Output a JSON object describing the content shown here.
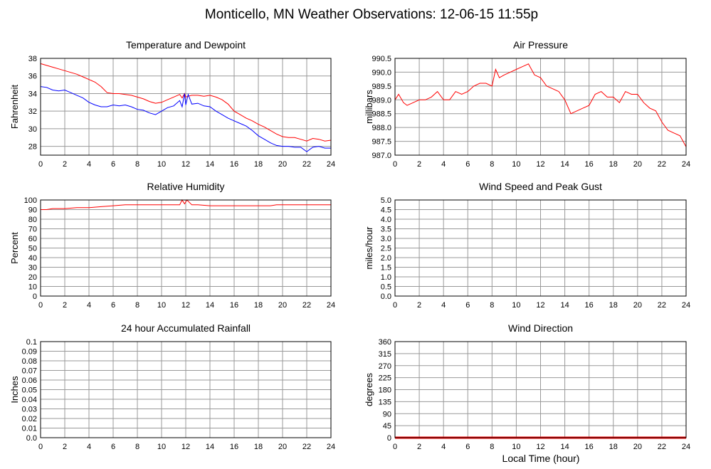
{
  "page": {
    "title": "Monticello, MN Weather Observations: 12-06-15 11:55p",
    "x_axis_label": "Local Time (hour)"
  },
  "chart_data": [
    {
      "id": "temp",
      "type": "line",
      "title": "Temperature and Dewpoint",
      "ylabel": "Fahrenheit",
      "xlim": [
        0,
        24
      ],
      "ylim": [
        27,
        38
      ],
      "yticks": [
        "28",
        "30",
        "32",
        "34",
        "36",
        "38"
      ],
      "ytick_values": [
        28,
        30,
        32,
        34,
        36,
        38
      ],
      "xticks": [
        "0",
        "2",
        "4",
        "6",
        "8",
        "10",
        "12",
        "14",
        "16",
        "18",
        "20",
        "22",
        "24"
      ],
      "grid": true,
      "series": [
        {
          "color": "#ff0000",
          "x": [
            0,
            0.5,
            1,
            1.5,
            2,
            2.5,
            3,
            3.5,
            4,
            4.5,
            5,
            5.5,
            6,
            6.5,
            7,
            7.5,
            8,
            8.5,
            9,
            9.5,
            10,
            10.5,
            11,
            11.5,
            11.7,
            11.9,
            12,
            12.2,
            12.5,
            13,
            13.5,
            14,
            14.5,
            15,
            15.5,
            16,
            16.5,
            17,
            17.5,
            18,
            18.5,
            19,
            19.5,
            20,
            20.5,
            21,
            21.5,
            22,
            22.5,
            23,
            23.5,
            24
          ],
          "y": [
            37.4,
            37.2,
            37.0,
            36.8,
            36.6,
            36.4,
            36.2,
            35.9,
            35.6,
            35.3,
            34.8,
            34.1,
            34.0,
            34.0,
            33.9,
            33.8,
            33.6,
            33.4,
            33.1,
            32.9,
            33.0,
            33.3,
            33.6,
            33.9,
            33.5,
            34.0,
            33.6,
            33.7,
            33.8,
            33.8,
            33.7,
            33.8,
            33.6,
            33.3,
            32.8,
            32.0,
            31.6,
            31.2,
            30.9,
            30.5,
            30.2,
            29.8,
            29.4,
            29.1,
            29.0,
            29.0,
            28.8,
            28.6,
            28.9,
            28.8,
            28.6,
            28.7
          ]
        },
        {
          "color": "#0000ff",
          "x": [
            0,
            0.5,
            1,
            1.5,
            2,
            2.5,
            3,
            3.5,
            4,
            4.5,
            5,
            5.5,
            6,
            6.5,
            7,
            7.5,
            8,
            8.5,
            9,
            9.5,
            10,
            10.5,
            11,
            11.5,
            11.7,
            11.9,
            12,
            12.2,
            12.5,
            13,
            13.5,
            14,
            14.5,
            15,
            15.5,
            16,
            16.5,
            17,
            17.5,
            18,
            18.5,
            19,
            19.5,
            20,
            20.5,
            21,
            21.5,
            22,
            22.5,
            23,
            23.5,
            24
          ],
          "y": [
            34.8,
            34.7,
            34.4,
            34.3,
            34.4,
            34.1,
            33.8,
            33.5,
            33.0,
            32.7,
            32.5,
            32.5,
            32.7,
            32.6,
            32.7,
            32.5,
            32.2,
            32.1,
            31.8,
            31.6,
            32.0,
            32.4,
            32.6,
            33.2,
            32.5,
            34.0,
            32.7,
            33.9,
            32.8,
            32.9,
            32.6,
            32.5,
            32.0,
            31.6,
            31.2,
            30.9,
            30.6,
            30.3,
            29.8,
            29.2,
            28.8,
            28.4,
            28.1,
            28.0,
            28.0,
            27.9,
            27.9,
            27.4,
            27.9,
            28.0,
            27.8,
            27.8
          ]
        }
      ]
    },
    {
      "id": "pressure",
      "type": "line",
      "title": "Air Pressure",
      "ylabel": "millibars",
      "xlim": [
        0,
        24
      ],
      "ylim": [
        987.0,
        990.5
      ],
      "yticks": [
        "987.0",
        "987.5",
        "988.0",
        "988.5",
        "989.0",
        "989.5",
        "990.0",
        "990.5"
      ],
      "ytick_values": [
        987.0,
        987.5,
        988.0,
        988.5,
        989.0,
        989.5,
        990.0,
        990.5
      ],
      "xticks": [
        "0",
        "2",
        "4",
        "6",
        "8",
        "10",
        "12",
        "14",
        "16",
        "18",
        "20",
        "22",
        "24"
      ],
      "grid": true,
      "series": [
        {
          "color": "#ff0000",
          "x": [
            0,
            0.3,
            0.7,
            1,
            1.5,
            2,
            2.5,
            3,
            3.5,
            4,
            4.5,
            5,
            5.5,
            6,
            6.5,
            7,
            7.5,
            8,
            8.3,
            8.6,
            9,
            9.5,
            10,
            10.5,
            11,
            11.5,
            12,
            12.5,
            13,
            13.5,
            14,
            14.5,
            15,
            15.5,
            16,
            16.5,
            17,
            17.5,
            18,
            18.5,
            19,
            19.5,
            20,
            20.5,
            21,
            21.5,
            22,
            22.5,
            23,
            23.5,
            24
          ],
          "y": [
            989.0,
            989.2,
            988.9,
            988.8,
            988.9,
            989.0,
            989.0,
            989.1,
            989.3,
            989.0,
            989.0,
            989.3,
            989.2,
            989.3,
            989.5,
            989.6,
            989.6,
            989.5,
            990.1,
            989.8,
            989.9,
            990.0,
            990.1,
            990.2,
            990.3,
            989.9,
            989.8,
            989.5,
            989.4,
            989.3,
            989.0,
            988.5,
            988.6,
            988.7,
            988.8,
            989.2,
            989.3,
            989.1,
            989.1,
            988.9,
            989.3,
            989.2,
            989.2,
            988.9,
            988.7,
            988.6,
            988.2,
            987.9,
            987.8,
            987.7,
            987.3
          ]
        }
      ]
    },
    {
      "id": "humidity",
      "type": "line",
      "title": "Relative Humidity",
      "ylabel": "Percent",
      "xlim": [
        0,
        24
      ],
      "ylim": [
        0,
        100
      ],
      "yticks": [
        "0",
        "10",
        "20",
        "30",
        "40",
        "50",
        "60",
        "70",
        "80",
        "90",
        "100"
      ],
      "ytick_values": [
        0,
        10,
        20,
        30,
        40,
        50,
        60,
        70,
        80,
        90,
        100
      ],
      "xticks": [
        "0",
        "2",
        "4",
        "6",
        "8",
        "10",
        "12",
        "14",
        "16",
        "18",
        "20",
        "22",
        "24"
      ],
      "grid": true,
      "series": [
        {
          "color": "#ff0000",
          "x": [
            0,
            0.5,
            1,
            2,
            3,
            4,
            5,
            6,
            7,
            8,
            9,
            10,
            11,
            11.5,
            11.7,
            11.9,
            12.1,
            12.5,
            13,
            14,
            15,
            16,
            17,
            18,
            19,
            19.5,
            20,
            21,
            22,
            23,
            24
          ],
          "y": [
            90,
            90,
            91,
            91,
            92,
            92,
            93,
            94,
            95,
            95,
            95,
            95,
            95,
            95,
            100,
            96,
            100,
            95,
            95,
            94,
            94,
            94,
            94,
            94,
            94,
            95,
            95,
            95,
            95,
            95,
            95
          ]
        }
      ]
    },
    {
      "id": "wind_speed",
      "type": "line",
      "title": "Wind Speed and Peak Gust",
      "ylabel": "miles/hour",
      "xlim": [
        0,
        24
      ],
      "ylim": [
        0,
        5
      ],
      "yticks": [
        "0.0",
        "0.5",
        "1.0",
        "1.5",
        "2.0",
        "2.5",
        "3.0",
        "3.5",
        "4.0",
        "4.5",
        "5.0"
      ],
      "ytick_values": [
        0,
        0.5,
        1.0,
        1.5,
        2.0,
        2.5,
        3.0,
        3.5,
        4.0,
        4.5,
        5.0
      ],
      "xticks": [
        "0",
        "2",
        "4",
        "6",
        "8",
        "10",
        "12",
        "14",
        "16",
        "18",
        "20",
        "22",
        "24"
      ],
      "grid": true,
      "series": [
        {
          "color": "#ff0000",
          "x": [
            0,
            24
          ],
          "y": [
            0,
            0
          ]
        },
        {
          "color": "#0000ff",
          "x": [
            0,
            24
          ],
          "y": [
            0,
            0
          ]
        }
      ]
    },
    {
      "id": "rain",
      "type": "line",
      "title": "24 hour Accumulated Rainfall",
      "ylabel": "Inches",
      "xlim": [
        0,
        24
      ],
      "ylim": [
        0,
        0.1
      ],
      "yticks": [
        "0.0",
        "0.01",
        "0.02",
        "0.03",
        "0.04",
        "0.05",
        "0.06",
        "0.07",
        "0.08",
        "0.09",
        "0.1"
      ],
      "ytick_values": [
        0,
        0.01,
        0.02,
        0.03,
        0.04,
        0.05,
        0.06,
        0.07,
        0.08,
        0.09,
        0.1
      ],
      "xticks": [
        "0",
        "2",
        "4",
        "6",
        "8",
        "10",
        "12",
        "14",
        "16",
        "18",
        "20",
        "22",
        "24"
      ],
      "grid": true,
      "series": [
        {
          "color": "#ff0000",
          "x": [
            0,
            24
          ],
          "y": [
            0,
            0
          ]
        }
      ]
    },
    {
      "id": "wind_dir",
      "type": "scatter",
      "title": "Wind Direction",
      "ylabel": "degrees",
      "xlim": [
        0,
        24
      ],
      "ylim": [
        0,
        360
      ],
      "yticks": [
        "0",
        "45",
        "90",
        "135",
        "180",
        "225",
        "270",
        "315",
        "360"
      ],
      "ytick_values": [
        0,
        45,
        90,
        135,
        180,
        225,
        270,
        315,
        360
      ],
      "xticks": [
        "0",
        "2",
        "4",
        "6",
        "8",
        "10",
        "12",
        "14",
        "16",
        "18",
        "20",
        "22",
        "24"
      ],
      "grid": true,
      "series": [
        {
          "color": "#ff0000",
          "x": [
            0,
            24
          ],
          "y": [
            0,
            0
          ]
        }
      ]
    }
  ]
}
